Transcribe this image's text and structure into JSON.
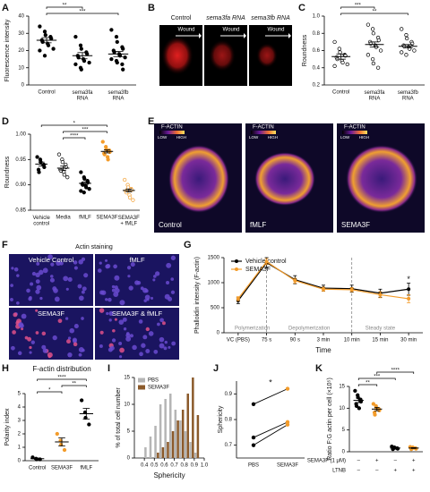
{
  "panel_labels": [
    "A",
    "B",
    "C",
    "D",
    "E",
    "F",
    "G",
    "H",
    "I",
    "J",
    "K"
  ],
  "chart_data": [
    {
      "type": "dot",
      "ylabel": "Fluorescence intensity",
      "categories": [
        "Control",
        "sema3fa RNA",
        "sema3fb RNA"
      ],
      "ylim": [
        0,
        40
      ],
      "yticks": [
        0,
        10,
        20,
        30,
        40
      ],
      "colors": [
        "#000000",
        "#000000",
        "#000000"
      ],
      "open": [
        false,
        false,
        false
      ],
      "values": [
        [
          34,
          31,
          29,
          28,
          27,
          26,
          25,
          24,
          23,
          21,
          20,
          17
        ],
        [
          28,
          23,
          21,
          19,
          18,
          17,
          16,
          15,
          14,
          13,
          12,
          10,
          9
        ],
        [
          32,
          28,
          25,
          22,
          21,
          20,
          19,
          18,
          17,
          16,
          15,
          14,
          13,
          12,
          9
        ]
      ],
      "means": [
        26,
        17,
        18
      ],
      "errors": [
        1.5,
        1.8,
        1.5
      ],
      "significance": [
        {
          "groups": [
            0,
            1
          ],
          "label": "**"
        },
        {
          "groups": [
            0,
            2
          ],
          "label": "***"
        }
      ]
    },
    {
      "type": "dot",
      "ylabel": "Roundness",
      "categories": [
        "Control",
        "sema3fa RNA",
        "sema3fb RNA"
      ],
      "ylim": [
        0.2,
        1.0
      ],
      "yticks": [
        0.2,
        0.4,
        0.6,
        0.8,
        {
          "value": 1,
          "label": "1.0"
        }
      ],
      "colors": [
        "#000000",
        "#000000",
        "#000000"
      ],
      "open": [
        true,
        true,
        true
      ],
      "values": [
        [
          0.7,
          0.62,
          0.58,
          0.55,
          0.54,
          0.52,
          0.5,
          0.48,
          0.46,
          0.44,
          0.42
        ],
        [
          0.9,
          0.85,
          0.8,
          0.75,
          0.72,
          0.7,
          0.68,
          0.66,
          0.64,
          0.6,
          0.55,
          0.5,
          0.45,
          0.4
        ],
        [
          0.85,
          0.78,
          0.74,
          0.7,
          0.68,
          0.66,
          0.65,
          0.64,
          0.62,
          0.6,
          0.58,
          0.55
        ]
      ],
      "means": [
        0.53,
        0.67,
        0.65
      ],
      "errors": [
        0.03,
        0.03,
        0.02
      ],
      "significance": [
        {
          "groups": [
            0,
            1
          ],
          "label": "***"
        },
        {
          "groups": [
            0,
            2
          ],
          "label": "**"
        }
      ]
    },
    {
      "type": "dot",
      "ylabel": "Roundness",
      "categories": [
        "Vehicle control",
        "Media",
        "fMLF",
        "SEMA3F",
        "SEMA3F + fMLF"
      ],
      "ylim": [
        0.85,
        1.0
      ],
      "yticks": [
        {
          "value": 0.85,
          "label": "0.85"
        },
        {
          "value": 0.9,
          "label": "0.90"
        },
        {
          "value": 0.95,
          "label": "0.95"
        },
        {
          "value": 1,
          "label": "1.00"
        }
      ],
      "colors": [
        "#000000",
        "#000000",
        "#000000",
        "#f39c2b",
        "#f39c2b"
      ],
      "open": [
        false,
        true,
        false,
        false,
        true
      ],
      "values": [
        [
          0.955,
          0.95,
          0.945,
          0.94,
          0.935,
          0.93,
          0.925
        ],
        [
          0.96,
          0.95,
          0.945,
          0.94,
          0.935,
          0.93,
          0.928,
          0.925,
          0.92,
          0.915
        ],
        [
          0.925,
          0.915,
          0.912,
          0.908,
          0.905,
          0.902,
          0.9,
          0.898,
          0.895,
          0.892,
          0.888,
          0.885
        ],
        [
          0.985,
          0.975,
          0.97,
          0.968,
          0.965,
          0.962,
          0.96,
          0.955,
          0.95
        ],
        [
          0.91,
          0.9,
          0.895,
          0.892,
          0.89,
          0.888,
          0.885,
          0.88,
          0.875,
          0.87
        ]
      ],
      "means": [
        0.941,
        0.933,
        0.903,
        0.966,
        0.889
      ],
      "errors": [
        0.004,
        0.004,
        0.003,
        0.003,
        0.003
      ],
      "significance": [
        {
          "groups": [
            0,
            3
          ],
          "label": "*"
        },
        {
          "groups": [
            1,
            3
          ],
          "label": "***"
        },
        {
          "groups": [
            1,
            2
          ],
          "label": "****"
        }
      ]
    },
    {
      "type": "line",
      "ylabel": "Phalloidin intensity (F-actin)",
      "xlabel": "Time",
      "categories": [
        "VC (PBS)",
        "75 s",
        "90 s",
        "3 min",
        "10 min",
        "15 min",
        "30 min"
      ],
      "ylim": [
        0,
        1500
      ],
      "yticks": [
        0,
        500,
        1000,
        1500
      ],
      "phases": [
        "Polymerization",
        "Depolymerization",
        "Steady state"
      ],
      "annotation": "*",
      "series": [
        {
          "name": "Vehicle control",
          "color": "#000000",
          "values": [
            640,
            1400,
            1060,
            890,
            880,
            790,
            870
          ],
          "errors": [
            60,
            100,
            80,
            60,
            70,
            80,
            120
          ]
        },
        {
          "name": "SEMA3F",
          "color": "#f39c2b",
          "values": [
            680,
            1420,
            1040,
            870,
            860,
            760,
            680
          ],
          "errors": [
            40,
            60,
            50,
            40,
            40,
            60,
            80
          ]
        }
      ]
    },
    {
      "type": "dot",
      "title": "F-actin distribution",
      "ylabel": "Polarity index",
      "categories": [
        "Control",
        "SEMA3F",
        "fMLF"
      ],
      "ylim": [
        0,
        5
      ],
      "yticks": [
        0,
        1,
        2,
        3,
        4,
        5
      ],
      "colors": [
        "#000000",
        "#f39c2b",
        "#000000"
      ],
      "open": [
        false,
        false,
        false
      ],
      "values": [
        [
          0.25,
          0.15,
          0.1,
          0.1
        ],
        [
          2.0,
          1.5,
          1.2,
          0.8
        ],
        [
          4.5,
          3.6,
          3.2,
          2.7
        ]
      ],
      "means": [
        0.15,
        1.4,
        3.5
      ],
      "errors": [
        0.05,
        0.3,
        0.4
      ],
      "significance": [
        {
          "groups": [
            0,
            2
          ],
          "label": "****"
        },
        {
          "groups": [
            1,
            2
          ],
          "label": "**"
        },
        {
          "groups": [
            0,
            1
          ],
          "label": "*"
        }
      ]
    },
    {
      "type": "histogram",
      "ylabel": "% of total cell number",
      "xlabel": "Sphericity",
      "xlim": [
        0.3,
        1.0
      ],
      "xticks": [
        0.4,
        0.5,
        0.6,
        0.7,
        0.8,
        0.9,
        {
          "value": 1,
          "label": "1.0"
        }
      ],
      "ylim": [
        0,
        15
      ],
      "yticks": [
        0,
        5,
        10,
        15
      ],
      "bins": [
        0.4,
        0.45,
        0.5,
        0.55,
        0.6,
        0.65,
        0.7,
        0.75,
        0.8,
        0.85,
        0.9,
        0.95
      ],
      "series": [
        {
          "name": "PBS",
          "color": "#b5b5b5",
          "values": [
            2,
            4,
            6,
            10,
            11,
            12,
            9,
            7,
            5,
            3,
            1
          ]
        },
        {
          "name": "SEMA3F",
          "color": "#8b5a2b",
          "values": [
            0,
            0,
            1,
            2,
            3,
            5,
            7,
            9,
            12,
            15,
            8
          ]
        }
      ]
    },
    {
      "type": "paired",
      "ylabel": "Sphericity",
      "categories": [
        "PBS",
        "SEMA3F"
      ],
      "ylim": [
        0.65,
        0.95
      ],
      "yticks": [
        0.7,
        0.8,
        0.9
      ],
      "colors": [
        "#000000",
        "#f39c2b"
      ],
      "significance_label": "*",
      "series": [
        {
          "values": [
            0.86,
            0.92
          ]
        },
        {
          "values": [
            0.73,
            0.79
          ]
        },
        {
          "values": [
            0.7,
            0.78
          ]
        }
      ]
    },
    {
      "type": "dot",
      "ylabel": "Ratio F:G actin per cell (×10⁵)",
      "table": [
        {
          "label": "SEMA3F (1 μM)",
          "cells": [
            "–",
            "+",
            "–",
            "+"
          ]
        },
        {
          "label": "LTNB",
          "cells": [
            "–",
            "–",
            "+",
            "+"
          ]
        }
      ],
      "ylim": [
        0,
        15
      ],
      "yticks": [
        0,
        5,
        10,
        15
      ],
      "colors": [
        "#000000",
        "#f39c2b",
        "#000000",
        "#f39c2b"
      ],
      "open": [
        false,
        false,
        false,
        false
      ],
      "values": [
        [
          14,
          13,
          12.5,
          12,
          11.5,
          11,
          10.5,
          10
        ],
        [
          11,
          10.5,
          10,
          9.8,
          9.5,
          9,
          8.5
        ],
        [
          1.2,
          1.0,
          0.9,
          0.8,
          0.7,
          0.6
        ],
        [
          1.1,
          1.0,
          0.9,
          0.8,
          0.7,
          0.6
        ]
      ],
      "means": [
        11.8,
        9.8,
        0.85,
        0.85
      ],
      "errors": [
        0.5,
        0.4,
        0.1,
        0.1
      ],
      "significance": [
        {
          "groups": [
            1,
            3
          ],
          "label": "****"
        },
        {
          "groups": [
            0,
            2
          ],
          "label": "***"
        },
        {
          "groups": [
            0,
            1
          ],
          "label": "**"
        }
      ]
    }
  ],
  "micrographs": {
    "wound": {
      "titles": [
        "Control",
        "sema3fa RNA",
        "sema3fb RNA"
      ],
      "arrow_label": "Wound"
    },
    "f_actin": {
      "colorbar": {
        "title": "F-ACTIN",
        "low": "LOW",
        "high": "HIGH"
      },
      "captions": [
        "Control",
        "fMLF",
        "SEMA3F"
      ]
    },
    "actin_staining": {
      "title": "Actin staining",
      "captions": [
        "Vehicle Control",
        "fMLF",
        "SEMA3F",
        "SEMA3F & fMLF"
      ]
    }
  }
}
